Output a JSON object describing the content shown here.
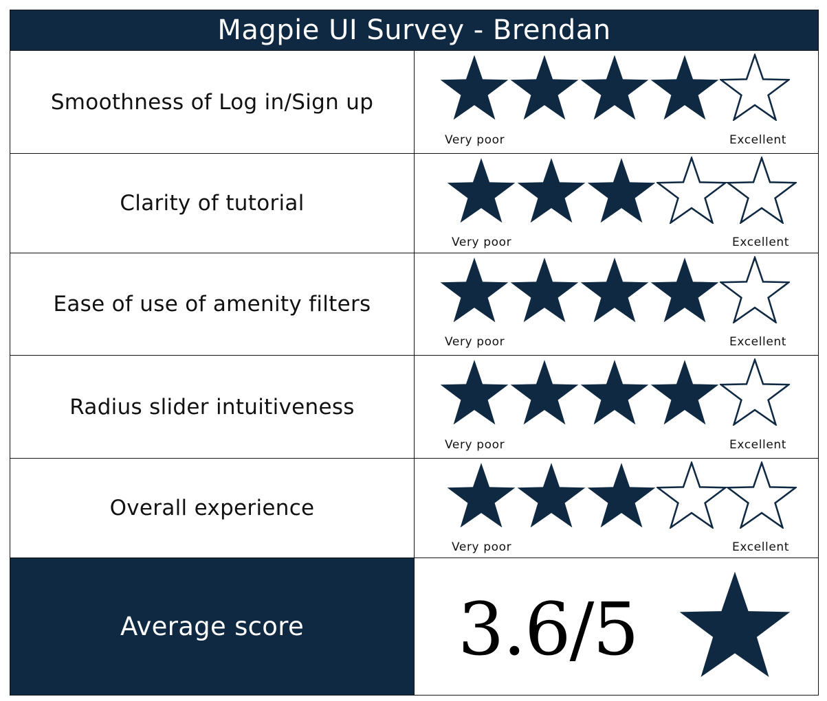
{
  "survey": {
    "title": "Magpie UI Survey - Brendan",
    "scale_low_label": "Very  poor",
    "scale_high_label": "Excellent",
    "max_stars": 5,
    "colors": {
      "header_bg": "#0f2942",
      "star_fill": "#0f2942",
      "text": "#111111"
    },
    "questions": [
      {
        "label": "Smoothness of Log in/Sign up",
        "rating": 4
      },
      {
        "label": "Clarity of tutorial",
        "rating": 3
      },
      {
        "label": "Ease of use of amenity filters",
        "rating": 4
      },
      {
        "label": "Radius slider intuitiveness",
        "rating": 4
      },
      {
        "label": "Overall experience",
        "rating": 3
      }
    ],
    "average": {
      "label": "Average score",
      "value": "3.6/5",
      "icon": "star-icon"
    }
  }
}
